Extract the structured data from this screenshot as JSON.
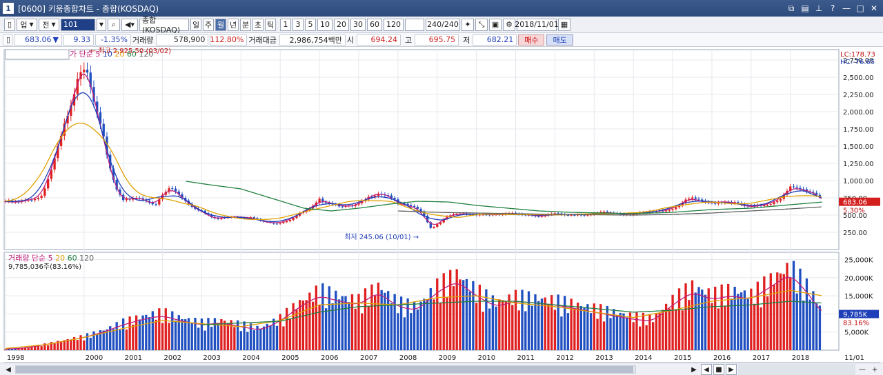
{
  "window": {
    "title": "[0600] 키움종합차트 - 종합(KOSDAQ)",
    "icon_text": "1"
  },
  "toolbar": {
    "market": "업",
    "market_sel": "전",
    "code": "101",
    "name": "종합(KOSDAQ)",
    "periods": [
      "일",
      "주",
      "월",
      "년",
      "분",
      "초",
      "틱"
    ],
    "selected_period": "월",
    "intervals": [
      "1",
      "3",
      "5",
      "10",
      "20",
      "30",
      "60",
      "120"
    ],
    "count": "240/240",
    "date": "2018/11/01"
  },
  "quote": {
    "price": "683.06",
    "change_arrow": "▼",
    "change": "9.33",
    "change_pct": "-1.35%",
    "volume_label": "거래량",
    "volume": "578,900",
    "volume_pct": "112.80%",
    "amount_label": "거래대금",
    "amount": "2,986,754백만",
    "open_label": "시",
    "open": "694.24",
    "high_label": "고",
    "high": "695.75",
    "low_label": "저",
    "low": "682.21",
    "buy_label": "매수",
    "sell_label": "매도"
  },
  "chart_data": [
    {
      "type": "candlestick",
      "title": "종합(KOSDAQ)",
      "ma_label": "종가 단순",
      "ma_periods": [
        "5",
        "10",
        "20",
        "60",
        "120"
      ],
      "ma_colors": [
        "#c0207a",
        "#1f3fb8",
        "#e0a000",
        "#208040",
        "#606060"
      ],
      "yaxis_ticks": [
        "2,750.00",
        "2,500.00",
        "2,250.00",
        "2,000.00",
        "1,750.00",
        "1,500.00",
        "1,250.00",
        "1,000.00",
        "750.00",
        "500.00",
        "250.00"
      ],
      "ylim": [
        0,
        2900
      ],
      "xlim": [
        1998.0,
        2019.2
      ],
      "max_annotation": "최고 2,925.50 (03/02)",
      "min_annotation": "최저 245.06 (10/01)",
      "lc": "LC:178.73",
      "hc": "HC:-76.65",
      "last_price_tag": "683.06",
      "last_pct_tag": "5.30%",
      "close_series": [
        [
          1998.0,
          700
        ],
        [
          1998.3,
          680
        ],
        [
          1998.6,
          720
        ],
        [
          1998.9,
          760
        ],
        [
          1999.1,
          1050
        ],
        [
          1999.3,
          1400
        ],
        [
          1999.5,
          1800
        ],
        [
          1999.7,
          2100
        ],
        [
          1999.9,
          2600
        ],
        [
          2000.05,
          2700
        ],
        [
          2000.2,
          2300
        ],
        [
          2000.4,
          1900
        ],
        [
          2000.6,
          1300
        ],
        [
          2000.8,
          900
        ],
        [
          2001.0,
          700
        ],
        [
          2001.3,
          760
        ],
        [
          2001.6,
          720
        ],
        [
          2001.8,
          620
        ],
        [
          2002.0,
          790
        ],
        [
          2002.2,
          900
        ],
        [
          2002.4,
          820
        ],
        [
          2002.6,
          700
        ],
        [
          2002.8,
          610
        ],
        [
          2003.0,
          560
        ],
        [
          2003.2,
          480
        ],
        [
          2003.4,
          440
        ],
        [
          2003.6,
          470
        ],
        [
          2003.8,
          480
        ],
        [
          2004.0,
          470
        ],
        [
          2004.3,
          460
        ],
        [
          2004.6,
          400
        ],
        [
          2004.9,
          380
        ],
        [
          2005.2,
          420
        ],
        [
          2005.5,
          520
        ],
        [
          2005.8,
          600
        ],
        [
          2006.0,
          720
        ],
        [
          2006.2,
          690
        ],
        [
          2006.5,
          640
        ],
        [
          2006.8,
          620
        ],
        [
          2007.0,
          660
        ],
        [
          2007.3,
          770
        ],
        [
          2007.5,
          820
        ],
        [
          2007.8,
          780
        ],
        [
          2008.0,
          660
        ],
        [
          2008.3,
          640
        ],
        [
          2008.6,
          560
        ],
        [
          2008.85,
          300
        ],
        [
          2009.0,
          370
        ],
        [
          2009.3,
          490
        ],
        [
          2009.6,
          520
        ],
        [
          2009.9,
          510
        ],
        [
          2010.2,
          510
        ],
        [
          2010.5,
          500
        ],
        [
          2010.8,
          520
        ],
        [
          2011.1,
          520
        ],
        [
          2011.4,
          500
        ],
        [
          2011.7,
          480
        ],
        [
          2012.0,
          520
        ],
        [
          2012.3,
          500
        ],
        [
          2012.6,
          510
        ],
        [
          2012.9,
          500
        ],
        [
          2013.2,
          540
        ],
        [
          2013.5,
          530
        ],
        [
          2013.8,
          510
        ],
        [
          2014.1,
          520
        ],
        [
          2014.4,
          540
        ],
        [
          2014.7,
          560
        ],
        [
          2015.0,
          590
        ],
        [
          2015.3,
          700
        ],
        [
          2015.5,
          750
        ],
        [
          2015.8,
          680
        ],
        [
          2016.1,
          680
        ],
        [
          2016.4,
          700
        ],
        [
          2016.7,
          660
        ],
        [
          2016.9,
          620
        ],
        [
          2017.2,
          630
        ],
        [
          2017.5,
          670
        ],
        [
          2017.8,
          760
        ],
        [
          2018.0,
          900
        ],
        [
          2018.2,
          880
        ],
        [
          2018.4,
          860
        ],
        [
          2018.6,
          820
        ],
        [
          2018.75,
          780
        ],
        [
          2018.83,
          683
        ]
      ],
      "ma60_series": [
        [
          2002.6,
          990
        ],
        [
          2003.2,
          940
        ],
        [
          2004.0,
          880
        ],
        [
          2004.8,
          740
        ],
        [
          2005.6,
          600
        ],
        [
          2006.3,
          560
        ],
        [
          2007.0,
          600
        ],
        [
          2007.8,
          660
        ],
        [
          2008.5,
          700
        ],
        [
          2009.3,
          690
        ],
        [
          2010.0,
          640
        ],
        [
          2010.8,
          600
        ],
        [
          2011.6,
          560
        ],
        [
          2012.4,
          540
        ],
        [
          2013.2,
          530
        ],
        [
          2014.0,
          520
        ],
        [
          2015.0,
          540
        ],
        [
          2016.0,
          580
        ],
        [
          2017.0,
          600
        ],
        [
          2018.0,
          650
        ],
        [
          2018.83,
          690
        ]
      ],
      "ma120_series": [
        [
          2008.0,
          560
        ],
        [
          2009.0,
          540
        ],
        [
          2010.0,
          530
        ],
        [
          2011.0,
          520
        ],
        [
          2012.0,
          510
        ],
        [
          2013.0,
          505
        ],
        [
          2014.0,
          500
        ],
        [
          2015.0,
          510
        ],
        [
          2016.0,
          530
        ],
        [
          2017.0,
          560
        ],
        [
          2018.0,
          590
        ],
        [
          2018.83,
          620
        ]
      ]
    },
    {
      "type": "bar",
      "title": "거래량",
      "ma_label": "단순",
      "ma_periods": [
        "5",
        "20",
        "60",
        "120"
      ],
      "ma_colors": [
        "#c0207a",
        "#e0a000",
        "#208040",
        "#606060"
      ],
      "info": "9,785,036주(83.16%)",
      "yaxis_ticks": [
        "25,000K",
        "20,000K",
        "15,000K",
        "10,000K",
        "5,000K"
      ],
      "ylim": [
        0,
        27000
      ],
      "last_value_tag": "9,785K",
      "last_pct_tag": "83.16%",
      "volume_series": [
        [
          1998.0,
          300
        ],
        [
          1998.5,
          600
        ],
        [
          1999.0,
          1500
        ],
        [
          1999.5,
          2500
        ],
        [
          2000.0,
          3500
        ],
        [
          2000.5,
          5000
        ],
        [
          2001.0,
          7000
        ],
        [
          2001.5,
          8500
        ],
        [
          2002.0,
          9500
        ],
        [
          2002.5,
          8000
        ],
        [
          2003.0,
          7000
        ],
        [
          2003.5,
          7500
        ],
        [
          2004.0,
          6500
        ],
        [
          2004.5,
          5500
        ],
        [
          2005.0,
          8000
        ],
        [
          2005.5,
          12000
        ],
        [
          2006.0,
          15000
        ],
        [
          2006.5,
          13500
        ],
        [
          2007.0,
          12500
        ],
        [
          2007.5,
          16000
        ],
        [
          2008.0,
          12000
        ],
        [
          2008.5,
          11000
        ],
        [
          2009.0,
          16000
        ],
        [
          2009.5,
          19000
        ],
        [
          2010.0,
          15000
        ],
        [
          2010.5,
          12000
        ],
        [
          2011.0,
          13500
        ],
        [
          2011.5,
          13000
        ],
        [
          2012.0,
          12500
        ],
        [
          2012.5,
          11500
        ],
        [
          2013.0,
          10500
        ],
        [
          2013.5,
          9500
        ],
        [
          2014.0,
          8500
        ],
        [
          2014.5,
          8000
        ],
        [
          2015.0,
          12500
        ],
        [
          2015.5,
          16000
        ],
        [
          2016.0,
          14000
        ],
        [
          2016.5,
          15000
        ],
        [
          2017.0,
          14000
        ],
        [
          2017.5,
          17500
        ],
        [
          2018.0,
          21000
        ],
        [
          2018.5,
          15000
        ],
        [
          2018.83,
          9785
        ]
      ],
      "vol_ma20_series": [
        [
          1998.0,
          500
        ],
        [
          1999.0,
          1500
        ],
        [
          2000.0,
          3500
        ],
        [
          2001.0,
          6000
        ],
        [
          2002.0,
          8200
        ],
        [
          2003.0,
          7300
        ],
        [
          2004.0,
          6500
        ],
        [
          2005.0,
          8200
        ],
        [
          2006.0,
          12500
        ],
        [
          2007.0,
          13000
        ],
        [
          2008.0,
          12500
        ],
        [
          2009.0,
          14500
        ],
        [
          2010.0,
          15000
        ],
        [
          2011.0,
          13000
        ],
        [
          2012.0,
          12000
        ],
        [
          2013.0,
          10500
        ],
        [
          2014.0,
          9000
        ],
        [
          2015.0,
          11000
        ],
        [
          2016.0,
          13500
        ],
        [
          2017.0,
          14500
        ],
        [
          2018.0,
          16500
        ],
        [
          2018.83,
          15000
        ]
      ],
      "vol_ma60_series": [
        [
          2003.0,
          7000
        ],
        [
          2004.0,
          7500
        ],
        [
          2005.0,
          8000
        ],
        [
          2006.0,
          10500
        ],
        [
          2007.0,
          12000
        ],
        [
          2008.0,
          12500
        ],
        [
          2009.0,
          13000
        ],
        [
          2010.0,
          13500
        ],
        [
          2011.0,
          13500
        ],
        [
          2012.0,
          12500
        ],
        [
          2013.0,
          11500
        ],
        [
          2014.0,
          10500
        ],
        [
          2015.0,
          11000
        ],
        [
          2016.0,
          12000
        ],
        [
          2017.0,
          12500
        ],
        [
          2018.0,
          13500
        ],
        [
          2018.83,
          13000
        ]
      ]
    }
  ],
  "xaxis": {
    "years": [
      "1998",
      "2000",
      "2001",
      "2002",
      "2003",
      "2004",
      "2005",
      "2006",
      "2007",
      "2008",
      "2009",
      "2010",
      "2011",
      "2012",
      "2013",
      "2014",
      "2015",
      "2016",
      "2017",
      "2018"
    ],
    "year_values": [
      1998,
      2000,
      2001,
      2002,
      2003,
      2004,
      2005,
      2006,
      2007,
      2008,
      2009,
      2010,
      2011,
      2012,
      2013,
      2014,
      2015,
      2016,
      2017,
      2018
    ],
    "right_label": "11/01"
  },
  "colors": {
    "up": "#e02020",
    "down": "#1f4fc0",
    "grid": "#e6e8ee",
    "price_tag_bg": "#d41f1f",
    "vol_tag_bg": "#1f3fb8"
  }
}
